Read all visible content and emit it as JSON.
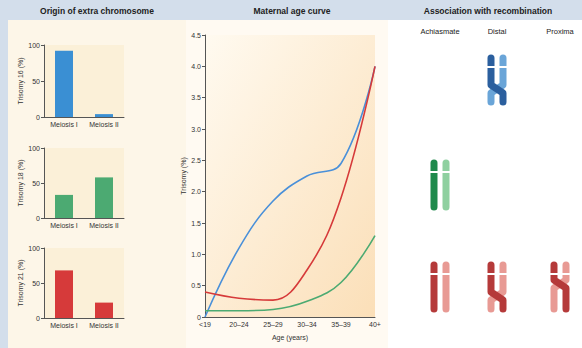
{
  "chart_data": [
    {
      "type": "bar",
      "y_label": "Trisomy 16 (%)",
      "categories": [
        "Meiosis I",
        "Meiosis II"
      ],
      "values": [
        92,
        4
      ],
      "color": "#3a8fd3",
      "ylim": [
        0,
        100
      ],
      "yticks": [
        0,
        50,
        100
      ]
    },
    {
      "type": "bar",
      "y_label": "Trisomy 18 (%)",
      "categories": [
        "Meiosis I",
        "Meiosis II"
      ],
      "values": [
        33,
        58
      ],
      "color": "#4caa72",
      "ylim": [
        0,
        100
      ],
      "yticks": [
        0,
        50,
        100
      ]
    },
    {
      "type": "bar",
      "y_label": "Trisomy 21 (%)",
      "categories": [
        "Meiosis I",
        "Meiosis II"
      ],
      "values": [
        68,
        22
      ],
      "color": "#d63a3a",
      "ylim": [
        0,
        100
      ],
      "yticks": [
        0,
        50,
        100
      ]
    },
    {
      "type": "line",
      "title": "Maternal age curve",
      "x_label": "Age (years)",
      "y_label": "Trisomy (%)",
      "categories": [
        "<19",
        "20–24",
        "25–29",
        "30–34",
        "35–39",
        "40+"
      ],
      "series": [
        {
          "color": "#4a90d9",
          "values": [
            0,
            1.1,
            1.85,
            2.25,
            2.45,
            4.0
          ]
        },
        {
          "color": "#d63a3a",
          "values": [
            0.4,
            0.3,
            0.27,
            0.75,
            1.9,
            4.0
          ]
        },
        {
          "color": "#4caa72",
          "values": [
            0.1,
            0.1,
            0.12,
            0.25,
            0.55,
            1.3
          ]
        }
      ],
      "ylim": [
        0,
        4.5
      ],
      "yticks": [
        0,
        0.5,
        {
          "value": 1,
          "label": "1.0"
        },
        1.5,
        {
          "value": 2,
          "label": "2.0"
        },
        2.5,
        {
          "value": 3,
          "label": "3.0"
        },
        3.5,
        {
          "value": 4,
          "label": "4.0"
        },
        4.5
      ]
    }
  ],
  "origin_title": "Origin of extra chromosome",
  "recombination": {
    "title": "Association with recombination",
    "columns": [
      "Achiasmate",
      "Distal",
      "Proxima"
    ],
    "rows": [
      {
        "color": "#2b5f9e",
        "light_color": "#6aa5d8",
        "shown": [
          "Distal"
        ]
      },
      {
        "color": "#1f8a4c",
        "light_color": "#8fd0a0",
        "shown": [
          "Achiasmate"
        ]
      },
      {
        "color": "#b53a3a",
        "light_color": "#e89a94",
        "shown": [
          "Achiasmate",
          "Distal",
          "Proxima"
        ]
      }
    ]
  }
}
